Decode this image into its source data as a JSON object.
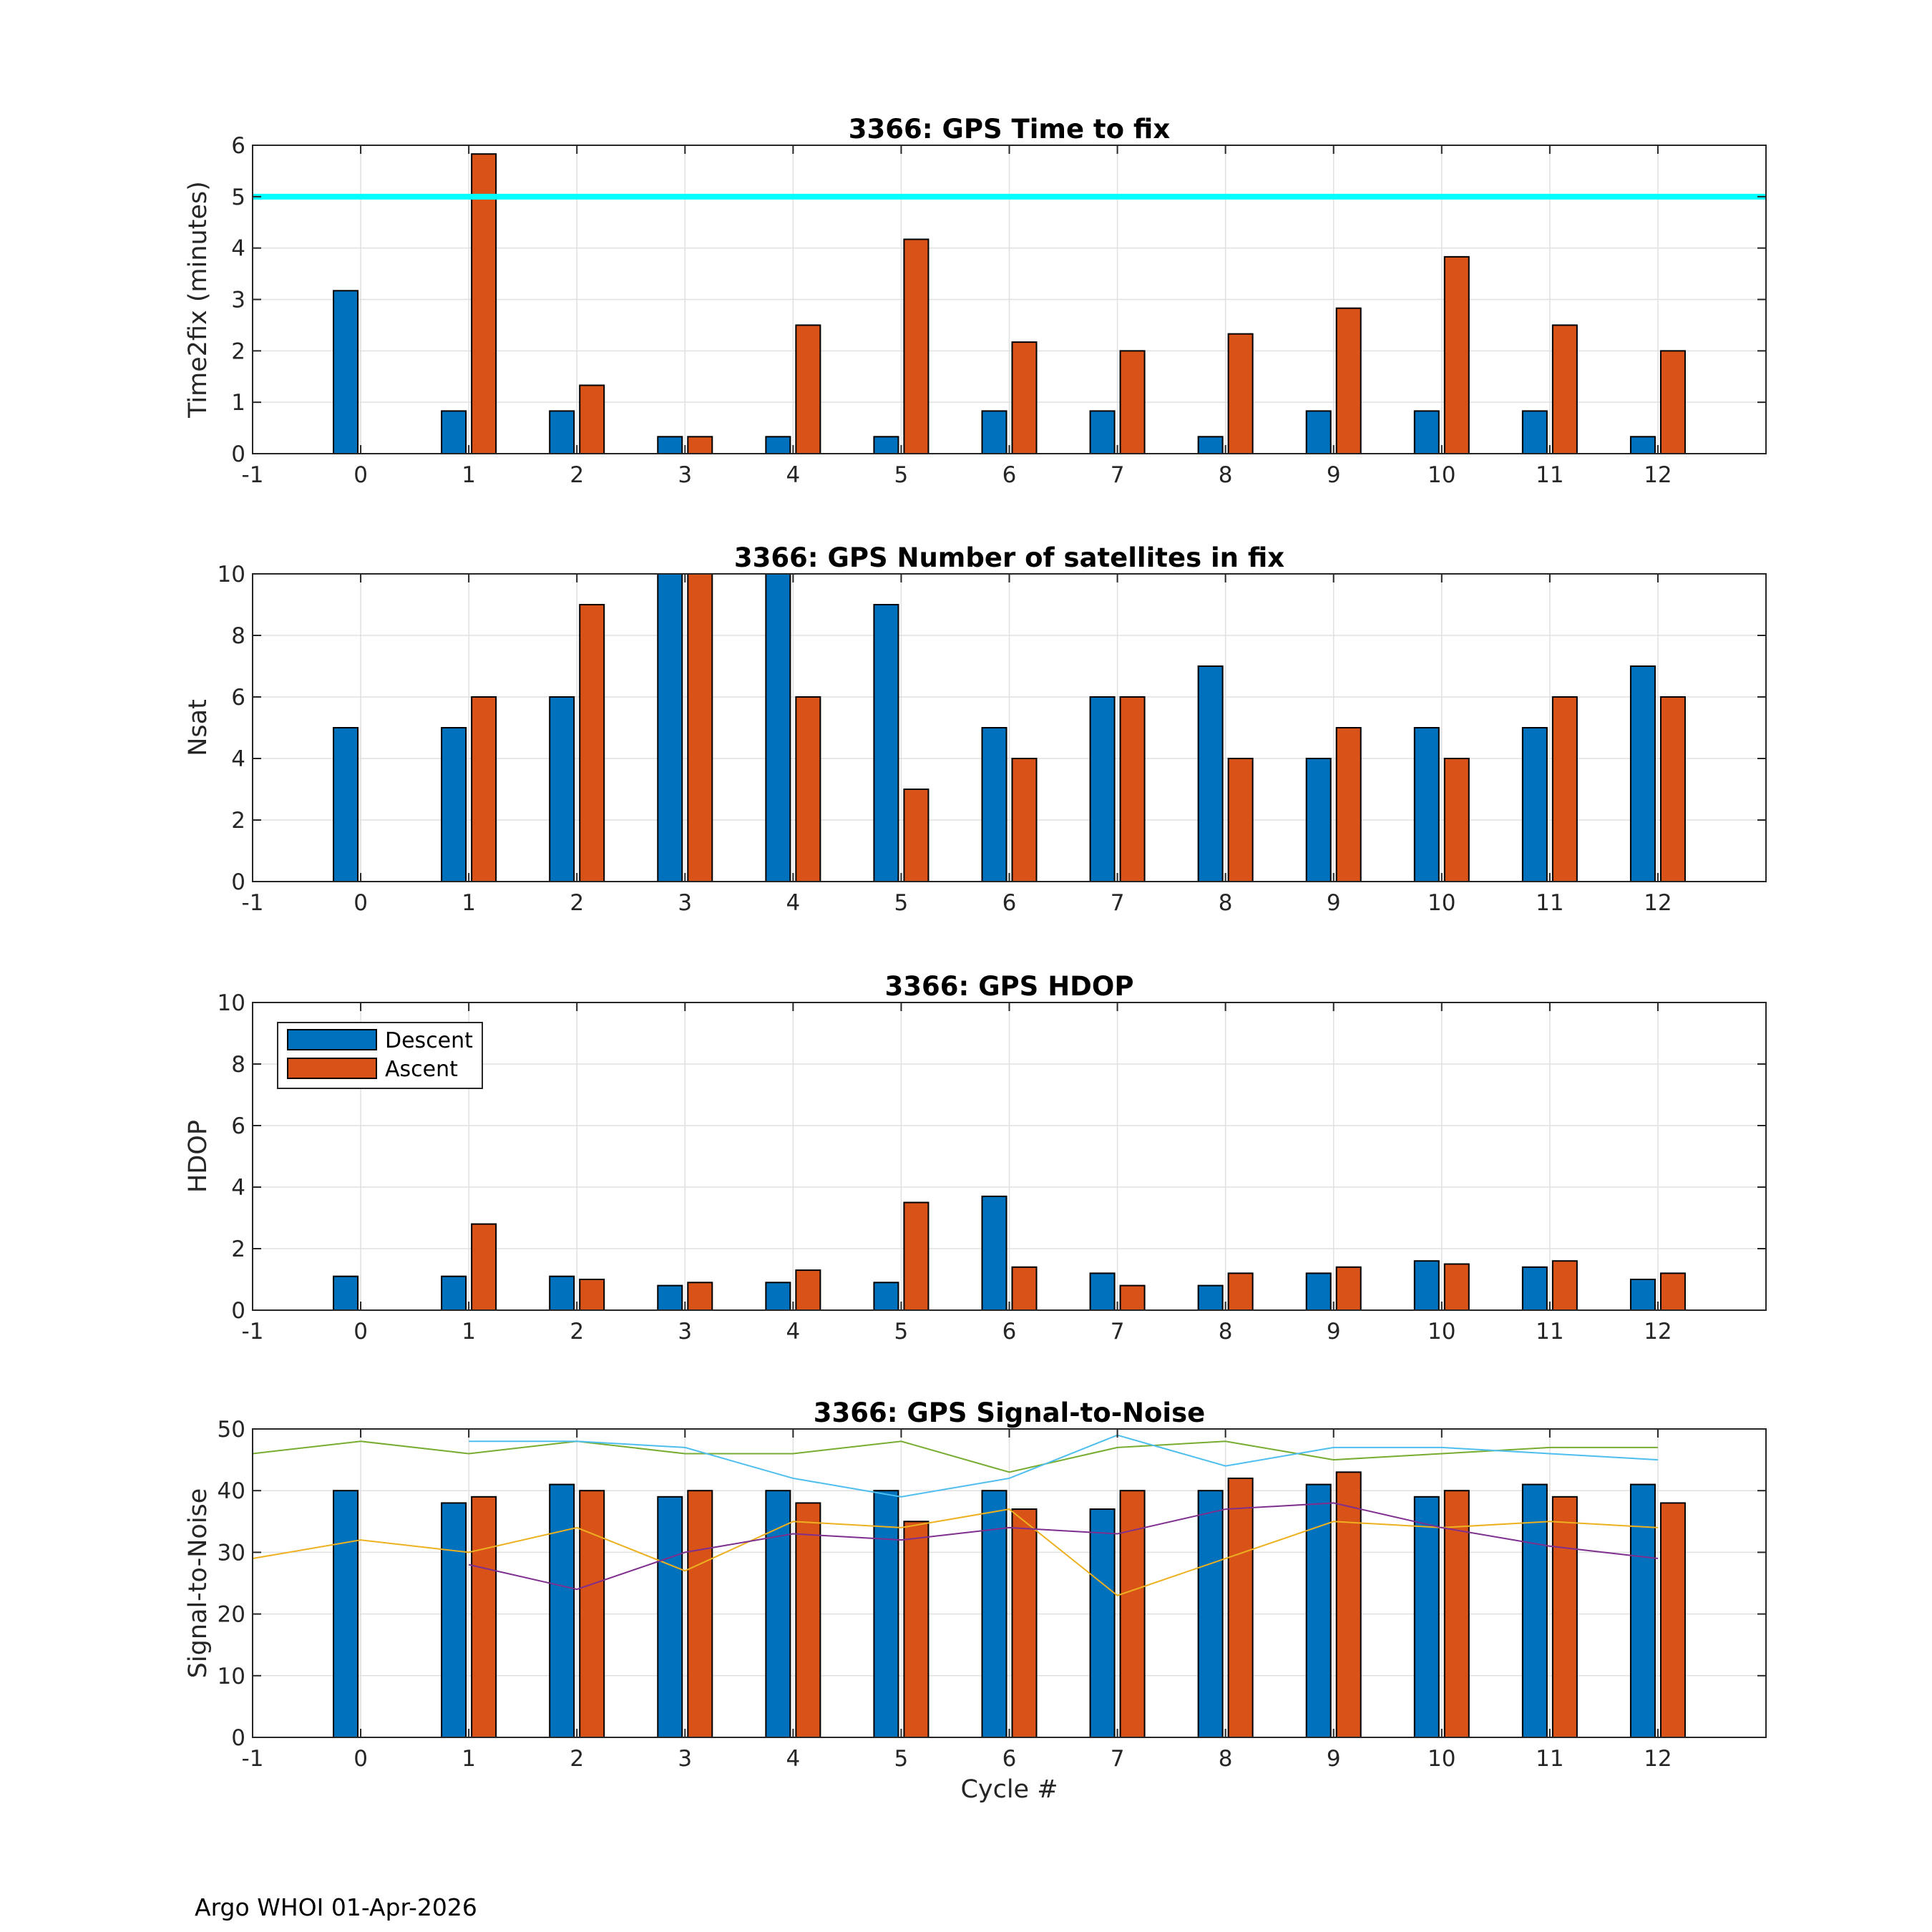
{
  "figure": {
    "footer": "Argo WHOI 01-Apr-2026",
    "colors": {
      "descent": "#0072BD",
      "ascent": "#D95319",
      "threshold": "#00FFFF",
      "grid": "#E0E0E0",
      "axis": "#262626"
    }
  },
  "chart_data": [
    {
      "type": "bar",
      "title": "3366: GPS Time to fix",
      "xlabel": "",
      "ylabel": "Time2fix (minutes)",
      "xlim": [
        -1,
        13
      ],
      "ylim": [
        0,
        6
      ],
      "xticks": [
        -1,
        0,
        1,
        2,
        3,
        4,
        5,
        6,
        7,
        8,
        9,
        10,
        11,
        12
      ],
      "yticks": [
        0,
        1,
        2,
        3,
        4,
        5,
        6
      ],
      "categories": [
        0,
        1,
        2,
        3,
        4,
        5,
        6,
        7,
        8,
        9,
        10,
        11,
        12
      ],
      "grid": true,
      "series": [
        {
          "name": "Descent",
          "values": [
            3.17,
            0.83,
            0.83,
            0.33,
            0.33,
            0.33,
            0.83,
            0.83,
            0.33,
            0.83,
            0.83,
            0.83,
            0.33
          ]
        },
        {
          "name": "Ascent",
          "values": [
            null,
            5.83,
            1.33,
            0.33,
            2.5,
            4.17,
            2.17,
            2.0,
            2.33,
            2.83,
            3.83,
            2.5,
            2.0
          ]
        }
      ],
      "hline": {
        "y": 5,
        "color": "#00FFFF"
      }
    },
    {
      "type": "bar",
      "title": "3366: GPS Number of satellites in fix",
      "xlabel": "",
      "ylabel": "Nsat",
      "xlim": [
        -1,
        13
      ],
      "ylim": [
        0,
        10
      ],
      "xticks": [
        -1,
        0,
        1,
        2,
        3,
        4,
        5,
        6,
        7,
        8,
        9,
        10,
        11,
        12
      ],
      "yticks": [
        0,
        2,
        4,
        6,
        8,
        10
      ],
      "categories": [
        0,
        1,
        2,
        3,
        4,
        5,
        6,
        7,
        8,
        9,
        10,
        11,
        12
      ],
      "grid": true,
      "series": [
        {
          "name": "Descent",
          "values": [
            5,
            5,
            6,
            10,
            10,
            9,
            5,
            6,
            7,
            4,
            5,
            5,
            7
          ]
        },
        {
          "name": "Ascent",
          "values": [
            null,
            6,
            9,
            10,
            6,
            3,
            4,
            6,
            4,
            5,
            4,
            6,
            6
          ]
        }
      ]
    },
    {
      "type": "bar",
      "title": "3366: GPS HDOP",
      "xlabel": "",
      "ylabel": "HDOP",
      "xlim": [
        -1,
        13
      ],
      "ylim": [
        0,
        10
      ],
      "xticks": [
        -1,
        0,
        1,
        2,
        3,
        4,
        5,
        6,
        7,
        8,
        9,
        10,
        11,
        12
      ],
      "yticks": [
        0,
        2,
        4,
        6,
        8,
        10
      ],
      "categories": [
        0,
        1,
        2,
        3,
        4,
        5,
        6,
        7,
        8,
        9,
        10,
        11,
        12
      ],
      "grid": true,
      "legend": {
        "placement": "top-left",
        "entries": [
          "Descent",
          "Ascent"
        ]
      },
      "series": [
        {
          "name": "Descent",
          "values": [
            1.1,
            1.1,
            1.1,
            0.8,
            0.9,
            0.9,
            3.7,
            1.2,
            0.8,
            1.2,
            1.6,
            1.4,
            1.0
          ]
        },
        {
          "name": "Ascent",
          "values": [
            null,
            2.8,
            1.0,
            0.9,
            1.3,
            3.5,
            1.4,
            0.8,
            1.2,
            1.4,
            1.5,
            1.6,
            1.2
          ]
        }
      ]
    },
    {
      "type": "bar",
      "title": "3366: GPS Signal-to-Noise",
      "xlabel": "Cycle #",
      "ylabel": "Signal-to-Noise",
      "xlim": [
        -1,
        13
      ],
      "ylim": [
        0,
        50
      ],
      "xticks": [
        -1,
        0,
        1,
        2,
        3,
        4,
        5,
        6,
        7,
        8,
        9,
        10,
        11,
        12
      ],
      "yticks": [
        0,
        10,
        20,
        30,
        40,
        50
      ],
      "categories": [
        0,
        1,
        2,
        3,
        4,
        5,
        6,
        7,
        8,
        9,
        10,
        11,
        12
      ],
      "grid": true,
      "series": [
        {
          "name": "Descent",
          "values": [
            40,
            38,
            41,
            39,
            40,
            40,
            40,
            37,
            40,
            41,
            39,
            41,
            41
          ]
        },
        {
          "name": "Ascent",
          "values": [
            null,
            39,
            40,
            40,
            38,
            35,
            37,
            40,
            42,
            43,
            40,
            39,
            38
          ]
        }
      ],
      "lines": [
        {
          "color": "#77AC30",
          "x": [
            -1,
            0,
            1,
            2,
            3,
            4,
            5,
            6,
            7,
            8,
            9,
            10,
            11,
            12
          ],
          "y": [
            46,
            48,
            46,
            48,
            46,
            46,
            48,
            43,
            47,
            48,
            45,
            46,
            47,
            47
          ]
        },
        {
          "color": "#4DBEEE",
          "x": [
            1,
            2,
            3,
            4,
            5,
            6,
            7,
            8,
            9,
            10,
            11,
            12
          ],
          "y": [
            48,
            48,
            47,
            42,
            39,
            42,
            49,
            44,
            47,
            47,
            46,
            45
          ]
        },
        {
          "color": "#EDB120",
          "x": [
            -1,
            0,
            1,
            2,
            3,
            4,
            5,
            6,
            7,
            8,
            9,
            10,
            11,
            12
          ],
          "y": [
            29,
            32,
            30,
            34,
            27,
            35,
            34,
            37,
            23,
            29,
            35,
            34,
            35,
            34
          ]
        },
        {
          "color": "#7E2F8E",
          "x": [
            1,
            2,
            3,
            4,
            5,
            6,
            7,
            8,
            9,
            10,
            11,
            12
          ],
          "y": [
            28,
            24,
            30,
            33,
            32,
            34,
            33,
            37,
            38,
            34,
            31,
            29
          ]
        }
      ]
    }
  ]
}
